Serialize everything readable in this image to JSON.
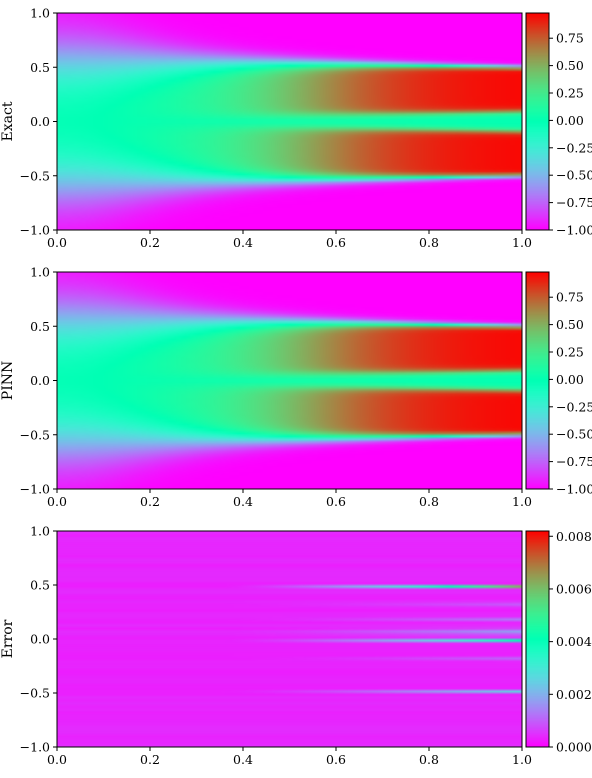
{
  "chart_data": [
    {
      "type": "heatmap",
      "ylabel": "Exact",
      "xlim": [
        0.0,
        1.0
      ],
      "ylim": [
        -1.0,
        1.0
      ],
      "x_ticks": [
        "0.0",
        "0.2",
        "0.4",
        "0.6",
        "0.8",
        "1.0"
      ],
      "y_ticks": [
        "1.0",
        "0.5",
        "0.0",
        "−0.5",
        "−1.0"
      ],
      "colorbar": {
        "min": -1.0,
        "max": 0.98,
        "ticks": [
          "0.75",
          "0.50",
          "0.25",
          "0.00",
          "−0.25",
          "−0.50",
          "−0.75",
          "−1.00"
        ]
      },
      "colormap": "rainbow",
      "field": "solution",
      "grid": false
    },
    {
      "type": "heatmap",
      "ylabel": "PINN",
      "xlim": [
        0.0,
        1.0
      ],
      "ylim": [
        -1.0,
        1.0
      ],
      "x_ticks": [
        "0.0",
        "0.2",
        "0.4",
        "0.6",
        "0.8",
        "1.0"
      ],
      "y_ticks": [
        "1.0",
        "0.5",
        "0.0",
        "−0.5",
        "−1.0"
      ],
      "colorbar": {
        "min": -1.0,
        "max": 0.98,
        "ticks": [
          "0.75",
          "0.50",
          "0.25",
          "0.00",
          "−0.25",
          "−0.50",
          "−0.75",
          "−1.00"
        ]
      },
      "colormap": "rainbow",
      "field": "solution",
      "grid": false
    },
    {
      "type": "heatmap",
      "ylabel": "Error",
      "xlim": [
        0.0,
        1.0
      ],
      "ylim": [
        -1.0,
        1.0
      ],
      "x_ticks": [
        "0.0",
        "0.2",
        "0.4",
        "0.6",
        "0.8",
        "1.0"
      ],
      "y_ticks": [
        "1.0",
        "0.5",
        "0.0",
        "−0.5",
        "−1.0"
      ],
      "colorbar": {
        "min": 0.0,
        "max": 0.0082,
        "ticks": [
          "0.008",
          "0.006",
          "0.004",
          "0.002",
          "0.000"
        ]
      },
      "colormap": "rainbow",
      "field": "error",
      "grid": false
    }
  ]
}
